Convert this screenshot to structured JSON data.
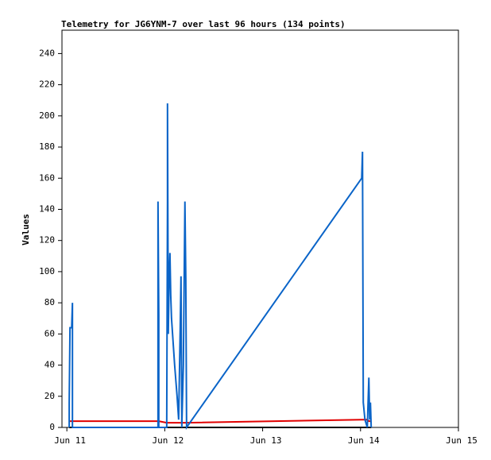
{
  "chart_data": {
    "type": "line",
    "title": "Telemetry for JG6YNM-7 over last 96 hours (134 points)",
    "y_label": "Values",
    "x": [
      11.024,
      11.024,
      11.032,
      11.049,
      11.057,
      11.057,
      11.931,
      11.931,
      11.939,
      11.939,
      12.02,
      12.028,
      12.028,
      12.036,
      12.045,
      12.053,
      12.061,
      12.069,
      12.101,
      12.126,
      12.142,
      12.158,
      12.166,
      12.174,
      12.19,
      12.206,
      12.215,
      12.223,
      14.012,
      14.02,
      14.028,
      14.045,
      14.069,
      14.085,
      14.093,
      14.101,
      14.109
    ],
    "series": [
      {
        "color": "#000000",
        "values": [
          0,
          0,
          0,
          0,
          0,
          0,
          0,
          0,
          0,
          0,
          0,
          0,
          0,
          0,
          0,
          0,
          0,
          0,
          0,
          0,
          0,
          0,
          0,
          0,
          0,
          0,
          0,
          0,
          0,
          0,
          0,
          0,
          0,
          0,
          0,
          0,
          0
        ]
      },
      {
        "color": "#e00000",
        "values": [
          4,
          4,
          4,
          4,
          4,
          4,
          4,
          4,
          4,
          4,
          3,
          3,
          3,
          3,
          3,
          3,
          3,
          3,
          3,
          3,
          3,
          3,
          3,
          3,
          3,
          3,
          3,
          3,
          5,
          5,
          5,
          5,
          5,
          4,
          4,
          4,
          4
        ]
      },
      {
        "color": "#0a64c8",
        "values": [
          0,
          16,
          64,
          64,
          80,
          0,
          0,
          145,
          72,
          0,
          0,
          145,
          208,
          60,
          97,
          112,
          85,
          70,
          40,
          20,
          5,
          64,
          97,
          0,
          40,
          145,
          96,
          0,
          160,
          177,
          16,
          5,
          0,
          32,
          5,
          16,
          0
        ]
      }
    ],
    "xlim": [
      10.95,
      15
    ],
    "xticks": [
      {
        "value": 11,
        "label": "Jun 11"
      },
      {
        "value": 12,
        "label": "Jun 12"
      },
      {
        "value": 13,
        "label": "Jun 13"
      },
      {
        "value": 14,
        "label": "Jun 14"
      },
      {
        "value": 15,
        "label": "Jun 15"
      }
    ],
    "ylim": [
      0,
      255
    ],
    "yticks": [
      0,
      20,
      40,
      60,
      80,
      100,
      120,
      140,
      160,
      180,
      200,
      220,
      240
    ]
  }
}
